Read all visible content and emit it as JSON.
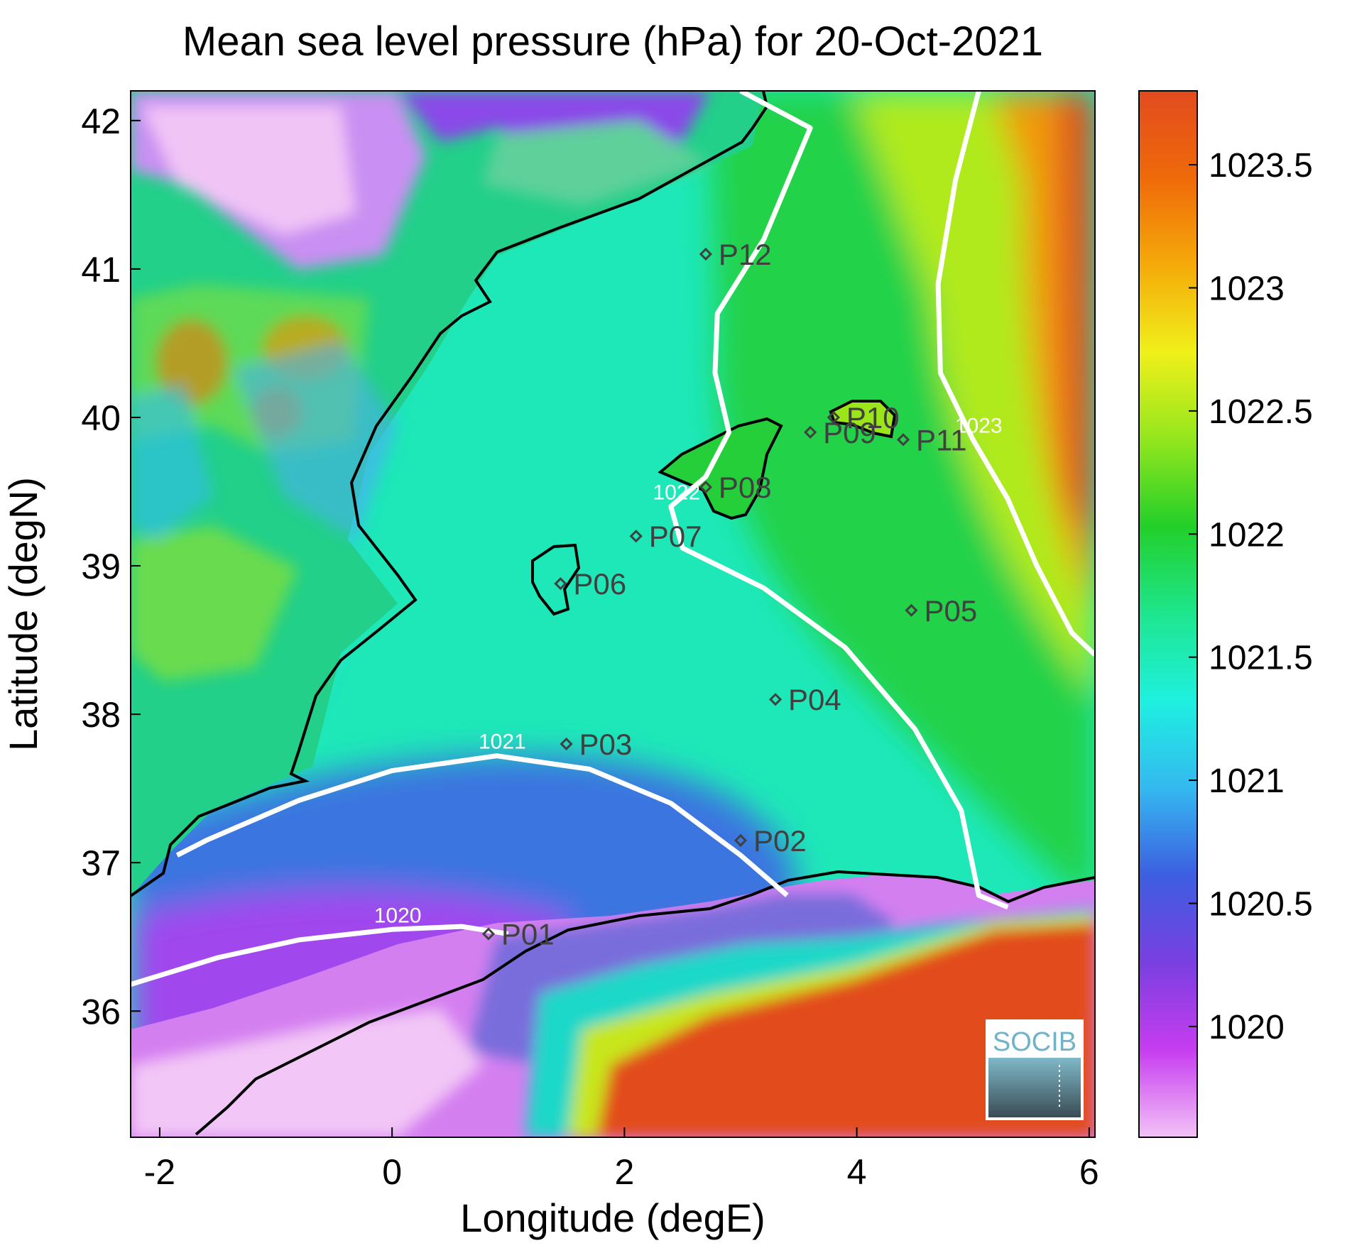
{
  "title": "Mean sea level pressure (hPa) for 20-Oct-2021",
  "xlabel": "Longitude (degE)",
  "ylabel": "Latitude (degN)",
  "x_ticks": [
    "-2",
    "0",
    "2",
    "4",
    "6"
  ],
  "y_ticks": [
    "36",
    "37",
    "38",
    "39",
    "40",
    "41",
    "42"
  ],
  "colorbar_ticks": [
    "1020",
    "1020.5",
    "1021",
    "1021.5",
    "1022",
    "1022.5",
    "1023",
    "1023.5"
  ],
  "logo": "SOCIB",
  "map": {
    "lon_range": [
      -2.25,
      6.05
    ],
    "lat_range": [
      35.15,
      42.2
    ],
    "colorbar_range": [
      1019.55,
      1023.8
    ],
    "colorbar_colors": [
      "#f3c2f7",
      "#c73df0",
      "#7a3fe0",
      "#3d5ee0",
      "#35b8f0",
      "#1ef0e0",
      "#1ee68e",
      "#22cf2a",
      "#93e61e",
      "#f0f01a",
      "#f5aa0a",
      "#ef6a0a",
      "#e24b1e"
    ],
    "contours": [
      {
        "label": "1020",
        "points": [
          [
            -2.25,
            36.18
          ],
          [
            -1.5,
            36.36
          ],
          [
            -0.8,
            36.48
          ],
          [
            0,
            36.55
          ],
          [
            0.6,
            36.57
          ],
          [
            1.0,
            36.52
          ]
        ]
      },
      {
        "label": "1021",
        "points": [
          [
            -1.85,
            37.05
          ],
          [
            -1.6,
            37.15
          ],
          [
            -0.8,
            37.42
          ],
          [
            0,
            37.62
          ],
          [
            0.9,
            37.72
          ],
          [
            1.7,
            37.63
          ],
          [
            2.4,
            37.4
          ],
          [
            3.0,
            37.05
          ],
          [
            3.4,
            36.78
          ]
        ]
      },
      {
        "label": "1022",
        "points": [
          [
            3.0,
            42.2
          ],
          [
            3.6,
            41.95
          ],
          [
            3.2,
            41.2
          ],
          [
            2.8,
            40.7
          ],
          [
            2.78,
            40.3
          ],
          [
            2.9,
            39.9
          ],
          [
            2.7,
            39.6
          ],
          [
            2.4,
            39.4
          ],
          [
            2.5,
            39.12
          ],
          [
            3.2,
            38.85
          ],
          [
            3.9,
            38.45
          ],
          [
            4.5,
            37.9
          ],
          [
            4.9,
            37.35
          ],
          [
            5.05,
            36.78
          ],
          [
            5.3,
            36.7
          ]
        ]
      },
      {
        "label": "1023",
        "points": [
          [
            5.05,
            42.2
          ],
          [
            4.85,
            41.6
          ],
          [
            4.7,
            40.9
          ],
          [
            4.72,
            40.3
          ],
          [
            5.0,
            39.85
          ],
          [
            5.3,
            39.45
          ],
          [
            5.55,
            39.0
          ],
          [
            5.85,
            38.55
          ],
          [
            6.05,
            38.4
          ]
        ]
      }
    ],
    "stations": [
      {
        "name": "P01",
        "lon": 0.83,
        "lat": 36.52
      },
      {
        "name": "P02",
        "lon": 3.0,
        "lat": 37.15
      },
      {
        "name": "P03",
        "lon": 1.5,
        "lat": 37.8
      },
      {
        "name": "P04",
        "lon": 3.3,
        "lat": 38.1
      },
      {
        "name": "P05",
        "lon": 4.47,
        "lat": 38.7
      },
      {
        "name": "P06",
        "lon": 1.45,
        "lat": 38.88
      },
      {
        "name": "P07",
        "lon": 2.1,
        "lat": 39.2
      },
      {
        "name": "P08",
        "lon": 2.7,
        "lat": 39.53
      },
      {
        "name": "P09",
        "lon": 3.6,
        "lat": 39.9
      },
      {
        "name": "P10",
        "lon": 3.8,
        "lat": 40.0
      },
      {
        "name": "P11",
        "lon": 4.4,
        "lat": 39.85
      },
      {
        "name": "P12",
        "lon": 2.7,
        "lat": 41.1
      }
    ]
  }
}
